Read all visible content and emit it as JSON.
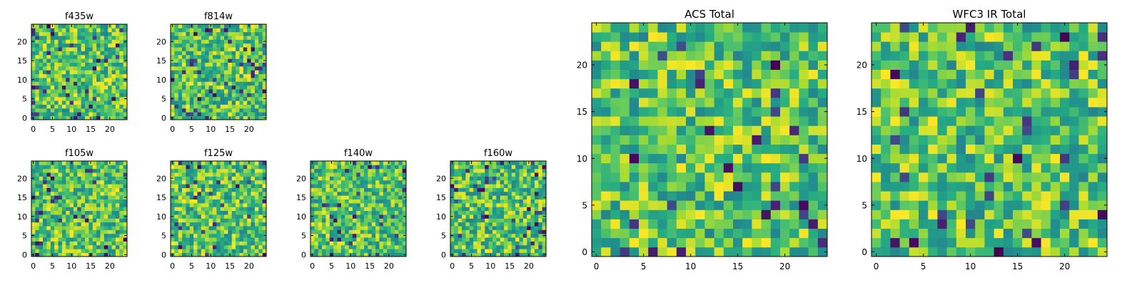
{
  "chart_data": [
    {
      "id": "f435w",
      "type": "heatmap",
      "title": "f435w",
      "grid": false,
      "x_ticks": [
        "0",
        "5",
        "10",
        "15",
        "20"
      ],
      "y_ticks": [
        "0",
        "5",
        "10",
        "15",
        "20"
      ],
      "xlim": [
        -0.5,
        24.5
      ],
      "ylim": [
        -0.5,
        24.5
      ],
      "n": 25,
      "colormap": "viridis",
      "seed": 11
    },
    {
      "id": "f814w",
      "type": "heatmap",
      "title": "f814w",
      "grid": false,
      "x_ticks": [
        "0",
        "5",
        "10",
        "15",
        "20"
      ],
      "y_ticks": [
        "0",
        "5",
        "10",
        "15",
        "20"
      ],
      "xlim": [
        -0.5,
        24.5
      ],
      "ylim": [
        -0.5,
        24.5
      ],
      "n": 25,
      "colormap": "viridis",
      "seed": 23
    },
    {
      "id": "f105w",
      "type": "heatmap",
      "title": "f105w",
      "grid": false,
      "x_ticks": [
        "0",
        "5",
        "10",
        "15",
        "20"
      ],
      "y_ticks": [
        "0",
        "5",
        "10",
        "15",
        "20"
      ],
      "xlim": [
        -0.5,
        24.5
      ],
      "ylim": [
        -0.5,
        24.5
      ],
      "n": 25,
      "colormap": "viridis",
      "seed": 37
    },
    {
      "id": "f125w",
      "type": "heatmap",
      "title": "f125w",
      "grid": false,
      "x_ticks": [
        "0",
        "5",
        "10",
        "15",
        "20"
      ],
      "y_ticks": [
        "0",
        "5",
        "10",
        "15",
        "20"
      ],
      "xlim": [
        -0.5,
        24.5
      ],
      "ylim": [
        -0.5,
        24.5
      ],
      "n": 25,
      "colormap": "viridis",
      "seed": 41
    },
    {
      "id": "f140w",
      "type": "heatmap",
      "title": "f140w",
      "grid": false,
      "x_ticks": [
        "0",
        "5",
        "10",
        "15",
        "20"
      ],
      "y_ticks": [
        "0",
        "5",
        "10",
        "15",
        "20"
      ],
      "xlim": [
        -0.5,
        24.5
      ],
      "ylim": [
        -0.5,
        24.5
      ],
      "n": 25,
      "colormap": "viridis",
      "seed": 53
    },
    {
      "id": "f160w",
      "type": "heatmap",
      "title": "f160w",
      "grid": false,
      "x_ticks": [
        "0",
        "5",
        "10",
        "15",
        "20"
      ],
      "y_ticks": [
        "0",
        "5",
        "10",
        "15",
        "20"
      ],
      "xlim": [
        -0.5,
        24.5
      ],
      "ylim": [
        -0.5,
        24.5
      ],
      "n": 25,
      "colormap": "viridis",
      "seed": 67
    },
    {
      "id": "acs-total",
      "type": "heatmap",
      "title": "ACS Total",
      "grid": false,
      "x_ticks": [
        "0",
        "5",
        "10",
        "15",
        "20"
      ],
      "y_ticks": [
        "0",
        "5",
        "10",
        "15",
        "20"
      ],
      "xlim": [
        -0.5,
        24.5
      ],
      "ylim": [
        -0.5,
        24.5
      ],
      "n": 25,
      "colormap": "viridis",
      "seed": 79
    },
    {
      "id": "wfc3-ir-total",
      "type": "heatmap",
      "title": "WFC3 IR Total",
      "grid": false,
      "x_ticks": [
        "0",
        "5",
        "10",
        "15",
        "20"
      ],
      "y_ticks": [
        "0",
        "5",
        "10",
        "15",
        "20"
      ],
      "xlim": [
        -0.5,
        24.5
      ],
      "ylim": [
        -0.5,
        24.5
      ],
      "n": 25,
      "colormap": "viridis",
      "seed": 97
    }
  ]
}
